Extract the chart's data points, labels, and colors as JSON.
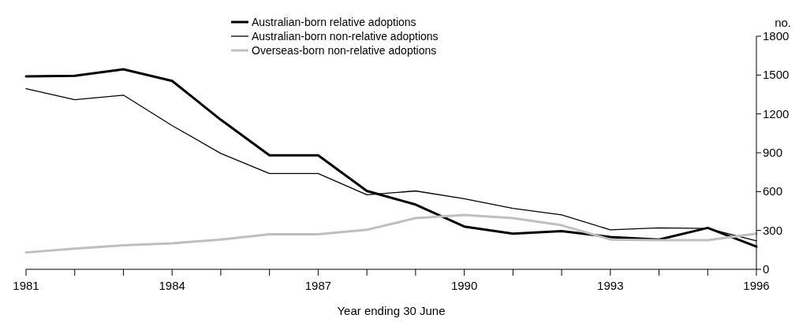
{
  "chart_data": {
    "type": "line",
    "xlabel": "Year ending 30 June",
    "ylabel": "no.",
    "x": [
      1981,
      1982,
      1983,
      1984,
      1985,
      1986,
      1987,
      1988,
      1989,
      1990,
      1991,
      1992,
      1993,
      1994,
      1995,
      1996
    ],
    "series": [
      {
        "name": "Australian-born relative adoptions",
        "color": "#000000",
        "values": [
          1490,
          1495,
          1545,
          1455,
          1155,
          880,
          880,
          605,
          500,
          330,
          275,
          295,
          250,
          230,
          320,
          175
        ]
      },
      {
        "name": "Australian-born non-relative adoptions",
        "color": "#000000",
        "values": [
          1395,
          1310,
          1345,
          1110,
          895,
          740,
          740,
          575,
          605,
          545,
          470,
          420,
          305,
          320,
          315,
          220
        ]
      },
      {
        "name": "Overseas-born non-relative adoptions",
        "color": "#bfbfbf",
        "values": [
          130,
          160,
          185,
          200,
          230,
          270,
          270,
          305,
          395,
          420,
          395,
          340,
          230,
          225,
          225,
          275
        ]
      }
    ],
    "xlim": [
      1981,
      1996
    ],
    "xticks": [
      1981,
      {
        "value": 1982,
        "label": null
      },
      {
        "value": 1983,
        "label": null
      },
      1984,
      {
        "value": 1985,
        "label": null
      },
      {
        "value": 1986,
        "label": null
      },
      1987,
      {
        "value": 1988,
        "label": null
      },
      {
        "value": 1989,
        "label": null
      },
      1990,
      {
        "value": 1991,
        "label": null
      },
      {
        "value": 1992,
        "label": null
      },
      1993,
      {
        "value": 1994,
        "label": null
      },
      {
        "value": 1995,
        "label": null
      },
      1996
    ],
    "ylim": [
      0,
      1800
    ],
    "yticks": [
      0,
      300,
      600,
      900,
      1200,
      1500,
      1800
    ],
    "grid": false,
    "legend": "top",
    "marker": "none",
    "line_style": "solid"
  }
}
